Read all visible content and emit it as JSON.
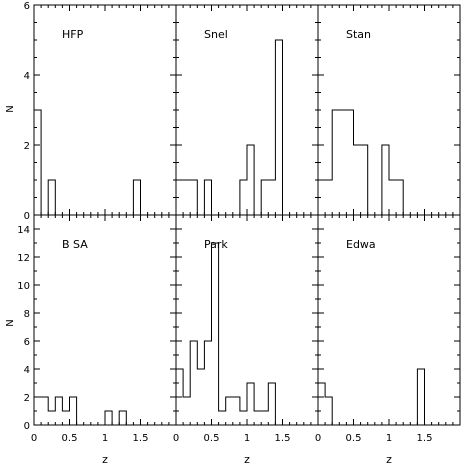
{
  "figure": {
    "ylabel": "N",
    "xlabel": "z"
  },
  "chart_data": [
    {
      "type": "histogram",
      "panel": "HFP",
      "bin_width": 0.1,
      "bin_starts": [
        0.0,
        0.1,
        0.2,
        0.3,
        0.4,
        0.5,
        0.6,
        0.7,
        0.8,
        0.9,
        1.0,
        1.1,
        1.2,
        1.3,
        1.4,
        1.5,
        1.6,
        1.7,
        1.8,
        1.9
      ],
      "counts": [
        3,
        0,
        1,
        0,
        0,
        0,
        0,
        0,
        0,
        0,
        0,
        0,
        0,
        0,
        1,
        0,
        0,
        0,
        0,
        0
      ],
      "xlim": [
        0,
        2
      ],
      "ylim": [
        0,
        6
      ],
      "y_ticks": [
        0,
        2,
        4,
        6
      ],
      "x_ticks": []
    },
    {
      "type": "histogram",
      "panel": "Snel",
      "bin_width": 0.1,
      "bin_starts": [
        0.0,
        0.1,
        0.2,
        0.3,
        0.4,
        0.5,
        0.6,
        0.7,
        0.8,
        0.9,
        1.0,
        1.1,
        1.2,
        1.3,
        1.4,
        1.5,
        1.6,
        1.7,
        1.8,
        1.9
      ],
      "counts": [
        1,
        1,
        1,
        0,
        1,
        0,
        0,
        0,
        0,
        1,
        2,
        0,
        1,
        1,
        5,
        0,
        0,
        0,
        0,
        0
      ],
      "xlim": [
        0,
        2
      ],
      "ylim": [
        0,
        6
      ],
      "y_ticks": [],
      "x_ticks": []
    },
    {
      "type": "histogram",
      "panel": "Stan",
      "bin_width": 0.1,
      "bin_starts": [
        0.0,
        0.1,
        0.2,
        0.3,
        0.4,
        0.5,
        0.6,
        0.7,
        0.8,
        0.9,
        1.0,
        1.1,
        1.2,
        1.3,
        1.4,
        1.5,
        1.6,
        1.7,
        1.8,
        1.9
      ],
      "counts": [
        1,
        1,
        3,
        3,
        3,
        2,
        2,
        0,
        0,
        2,
        1,
        1,
        0,
        0,
        0,
        0,
        0,
        0,
        0,
        0
      ],
      "xlim": [
        0,
        2
      ],
      "ylim": [
        0,
        6
      ],
      "y_ticks": [],
      "x_ticks": []
    },
    {
      "type": "histogram",
      "panel": "B SA",
      "bin_width": 0.1,
      "bin_starts": [
        0.0,
        0.1,
        0.2,
        0.3,
        0.4,
        0.5,
        0.6,
        0.7,
        0.8,
        0.9,
        1.0,
        1.1,
        1.2,
        1.3,
        1.4,
        1.5,
        1.6,
        1.7,
        1.8,
        1.9
      ],
      "counts": [
        2,
        2,
        1,
        2,
        1,
        2,
        0,
        0,
        0,
        0,
        1,
        0,
        1,
        0,
        0,
        0,
        0,
        0,
        0,
        0
      ],
      "xlim": [
        0,
        2
      ],
      "ylim": [
        0,
        15
      ],
      "y_ticks": [
        0,
        2,
        4,
        6,
        8,
        10,
        12,
        14
      ],
      "x_ticks": [
        0,
        0.5,
        1,
        1.5
      ],
      "x_tick_labels": [
        "0",
        "0.5",
        "1",
        "1.5"
      ]
    },
    {
      "type": "histogram",
      "panel": "Park",
      "bin_width": 0.1,
      "bin_starts": [
        0.0,
        0.1,
        0.2,
        0.3,
        0.4,
        0.5,
        0.6,
        0.7,
        0.8,
        0.9,
        1.0,
        1.1,
        1.2,
        1.3,
        1.4,
        1.5,
        1.6,
        1.7,
        1.8,
        1.9
      ],
      "counts": [
        4,
        2,
        6,
        4,
        6,
        13,
        1,
        2,
        2,
        1,
        3,
        1,
        1,
        3,
        0,
        0,
        0,
        0,
        0,
        0
      ],
      "xlim": [
        0,
        2
      ],
      "ylim": [
        0,
        15
      ],
      "y_ticks": [],
      "x_ticks": [
        0,
        0.5,
        1,
        1.5
      ],
      "x_tick_labels": [
        "0",
        "0.5",
        "1",
        "1.5"
      ]
    },
    {
      "type": "histogram",
      "panel": "Edwa",
      "bin_width": 0.1,
      "bin_starts": [
        0.0,
        0.1,
        0.2,
        0.3,
        0.4,
        0.5,
        0.6,
        0.7,
        0.8,
        0.9,
        1.0,
        1.1,
        1.2,
        1.3,
        1.4,
        1.5,
        1.6,
        1.7,
        1.8,
        1.9
      ],
      "counts": [
        3,
        2,
        0,
        0,
        0,
        0,
        0,
        0,
        0,
        0,
        0,
        0,
        0,
        0,
        4,
        0,
        0,
        0,
        0,
        0
      ],
      "xlim": [
        0,
        2
      ],
      "ylim": [
        0,
        15
      ],
      "y_ticks": [],
      "x_ticks": [
        0,
        0.5,
        1,
        1.5
      ],
      "x_tick_labels": [
        "0",
        "0.5",
        "1",
        "1.5"
      ]
    }
  ]
}
